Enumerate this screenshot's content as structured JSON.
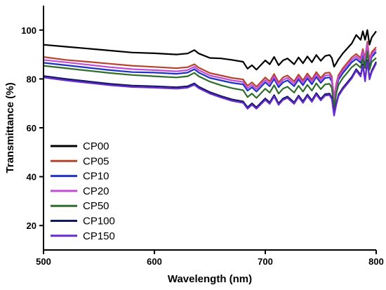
{
  "chart_data": {
    "type": "line",
    "xlabel": "Wavelength (nm)",
    "ylabel": "Transmittance (%)",
    "xlim": [
      500,
      800
    ],
    "ylim": [
      10,
      110
    ],
    "x_ticks": [
      500,
      600,
      700,
      800
    ],
    "y_ticks": [
      20,
      40,
      60,
      80,
      100
    ],
    "grid": false,
    "legend_position": "bottom-left",
    "colors": {
      "CP00": "#000000",
      "CP05": "#b5452f",
      "CP10": "#1f32c8",
      "CP20": "#c44bd6",
      "CP50": "#2e6e2a",
      "CP100": "#101a5c",
      "CP150": "#6a2bd0"
    },
    "series": [
      {
        "name": "CP00",
        "x": [
          500,
          520,
          540,
          560,
          580,
          600,
          620,
          630,
          636,
          640,
          650,
          660,
          670,
          680,
          684,
          688,
          692,
          700,
          704,
          708,
          712,
          716,
          720,
          726,
          730,
          734,
          738,
          742,
          746,
          750,
          754,
          758,
          760,
          762,
          764,
          766,
          770,
          774,
          778,
          782,
          786,
          788,
          790,
          792,
          794,
          796,
          800
        ],
        "y": [
          94,
          93.2,
          92.4,
          91.6,
          90.8,
          90.5,
          90,
          90.4,
          91.8,
          90.4,
          88.6,
          88.4,
          87.8,
          87,
          84.2,
          85.6,
          83.8,
          87.6,
          86,
          89,
          85.6,
          87.6,
          88.4,
          86,
          88.8,
          86.4,
          89.2,
          86.8,
          89.8,
          87.4,
          89.4,
          89.8,
          88.6,
          85,
          86.4,
          88,
          90.5,
          92.5,
          94.5,
          98,
          96,
          99.5,
          96,
          100,
          94,
          97,
          99.5
        ]
      },
      {
        "name": "CP05",
        "x": [
          500,
          520,
          540,
          560,
          580,
          600,
          620,
          630,
          636,
          640,
          650,
          660,
          670,
          680,
          684,
          688,
          692,
          700,
          704,
          708,
          712,
          716,
          720,
          726,
          730,
          734,
          738,
          742,
          746,
          750,
          754,
          758,
          760,
          762,
          764,
          766,
          770,
          774,
          778,
          782,
          786,
          788,
          790,
          792,
          794,
          796,
          800
        ],
        "y": [
          89,
          87.8,
          87,
          86.2,
          85.4,
          84.9,
          84.4,
          84.8,
          86,
          84.6,
          82.4,
          81.4,
          80.4,
          79.8,
          77.2,
          78.6,
          76.8,
          80.6,
          79,
          82,
          78.6,
          80.6,
          81.4,
          79,
          81.8,
          79.4,
          82.2,
          79.8,
          82.8,
          80.4,
          82.4,
          82.6,
          81,
          72,
          78,
          81.6,
          84.4,
          86.6,
          88.8,
          90.2,
          88.6,
          92.2,
          88.4,
          95.2,
          87.8,
          91,
          93
        ]
      },
      {
        "name": "CP10",
        "x": [
          500,
          520,
          540,
          560,
          580,
          600,
          620,
          630,
          636,
          640,
          650,
          660,
          670,
          680,
          684,
          688,
          692,
          700,
          704,
          708,
          712,
          716,
          720,
          726,
          730,
          734,
          738,
          742,
          746,
          750,
          754,
          758,
          760,
          762,
          764,
          766,
          770,
          774,
          778,
          782,
          786,
          788,
          790,
          792,
          794,
          796,
          800
        ],
        "y": [
          86.6,
          85.6,
          84.6,
          83.6,
          82.8,
          82.6,
          82.1,
          82.6,
          84,
          82.6,
          80.4,
          79.4,
          78.4,
          77.8,
          75.2,
          76.6,
          74.8,
          78.6,
          77,
          80,
          76.6,
          78.6,
          79.4,
          77,
          79.8,
          77.4,
          80.2,
          77.8,
          80.8,
          78.4,
          80.4,
          80.6,
          79,
          71,
          76,
          79.6,
          82.4,
          84.6,
          86.8,
          88.2,
          86.6,
          90.2,
          86.4,
          93.2,
          85.8,
          89,
          91
        ]
      },
      {
        "name": "CP20",
        "x": [
          500,
          520,
          540,
          560,
          580,
          600,
          620,
          630,
          636,
          640,
          650,
          660,
          670,
          680,
          684,
          688,
          692,
          700,
          704,
          708,
          712,
          716,
          720,
          726,
          730,
          734,
          738,
          742,
          746,
          750,
          754,
          758,
          760,
          762,
          764,
          766,
          770,
          774,
          778,
          782,
          786,
          788,
          790,
          792,
          794,
          796,
          800
        ],
        "y": [
          87.8,
          86.8,
          85.8,
          84.8,
          84,
          83.6,
          83.1,
          83.6,
          85,
          83.6,
          81.4,
          80.4,
          79.4,
          78.8,
          76.2,
          77.6,
          75.8,
          79.6,
          78,
          81,
          77.6,
          79.6,
          80.4,
          78,
          80.8,
          78.4,
          81.2,
          78.8,
          81.8,
          79.4,
          81.4,
          81.6,
          80,
          71.5,
          77,
          80.6,
          83.4,
          85.6,
          87.8,
          89.2,
          87.6,
          91.2,
          87.4,
          94.2,
          86.8,
          90,
          92
        ]
      },
      {
        "name": "CP50",
        "x": [
          500,
          520,
          540,
          560,
          580,
          600,
          620,
          630,
          636,
          640,
          650,
          660,
          670,
          680,
          684,
          688,
          692,
          700,
          704,
          708,
          712,
          716,
          720,
          726,
          730,
          734,
          738,
          742,
          746,
          750,
          754,
          758,
          760,
          762,
          764,
          766,
          770,
          774,
          778,
          782,
          786,
          788,
          790,
          792,
          794,
          796,
          800
        ],
        "y": [
          85.4,
          84.4,
          83.4,
          82.4,
          81.6,
          81.1,
          80.6,
          81.1,
          82.5,
          81.1,
          78.9,
          77.4,
          76.2,
          75.4,
          72.6,
          74,
          72.2,
          76,
          74.4,
          77.4,
          74,
          76,
          76.8,
          74.4,
          77.2,
          74.8,
          77.6,
          75.2,
          78.2,
          75.8,
          77.8,
          78,
          76.4,
          68,
          74,
          77.6,
          80.4,
          82.6,
          84.8,
          86.2,
          84.6,
          88.2,
          84.4,
          91.2,
          83.8,
          87,
          88.6
        ]
      },
      {
        "name": "CP100",
        "x": [
          500,
          520,
          540,
          560,
          580,
          600,
          620,
          630,
          636,
          640,
          650,
          660,
          670,
          680,
          684,
          688,
          692,
          700,
          704,
          708,
          712,
          716,
          720,
          726,
          730,
          734,
          738,
          742,
          746,
          750,
          754,
          758,
          760,
          762,
          764,
          766,
          770,
          774,
          778,
          782,
          786,
          788,
          790,
          792,
          794,
          796,
          800
        ],
        "y": [
          81.2,
          80,
          79,
          78,
          77.3,
          77,
          76.6,
          77,
          78.2,
          76.8,
          74.6,
          73,
          71.6,
          70.8,
          68.4,
          70,
          68.4,
          72,
          70.4,
          73.4,
          70,
          72,
          72.8,
          70.4,
          73.2,
          70.8,
          73.6,
          71.2,
          74.2,
          71.8,
          73.8,
          74,
          72.4,
          65.5,
          70,
          73.6,
          76.4,
          78.6,
          80.8,
          84,
          81.6,
          86,
          79.6,
          87.6,
          80.4,
          83.4,
          87
        ]
      },
      {
        "name": "CP150",
        "x": [
          500,
          520,
          540,
          560,
          580,
          600,
          620,
          630,
          636,
          640,
          650,
          660,
          670,
          680,
          684,
          688,
          692,
          700,
          704,
          708,
          712,
          716,
          720,
          726,
          730,
          734,
          738,
          742,
          746,
          750,
          754,
          758,
          760,
          762,
          764,
          766,
          770,
          774,
          778,
          782,
          786,
          788,
          790,
          792,
          794,
          796,
          800
        ],
        "y": [
          80.6,
          79.4,
          78.4,
          77.4,
          76.7,
          76.4,
          76,
          76.4,
          77.6,
          76.2,
          74,
          72.4,
          71,
          70.2,
          67.8,
          69.4,
          67.8,
          71.4,
          69.8,
          72.8,
          69.4,
          71.4,
          72.2,
          69.8,
          72.6,
          70.2,
          73,
          70.6,
          73.6,
          71.2,
          73.2,
          73.4,
          71.8,
          65,
          69.4,
          73,
          75.8,
          78,
          80.2,
          83.4,
          81,
          85.4,
          79,
          87,
          79.8,
          82.8,
          86.4
        ]
      }
    ]
  }
}
